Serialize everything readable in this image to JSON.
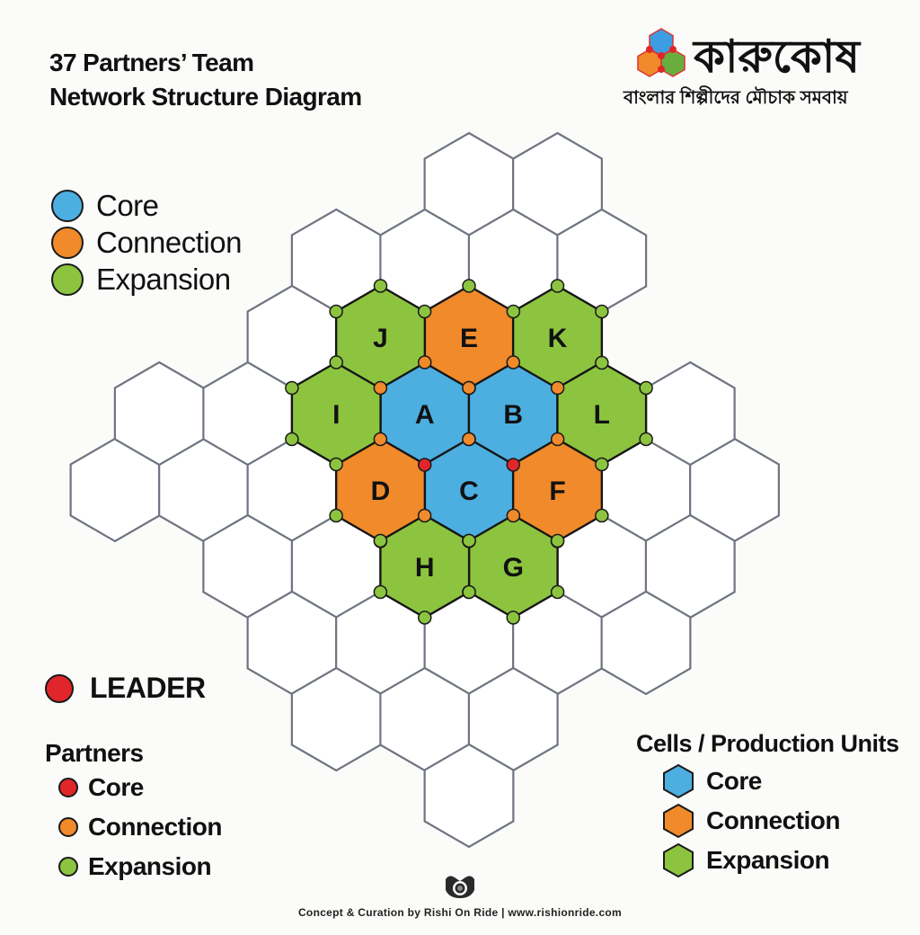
{
  "title": {
    "line1": "37 Partners’ Team",
    "line2": "Network Structure Diagram"
  },
  "logo": {
    "name": "কারুকোষ",
    "tagline": "বাংলার শিল্পীদের মৌচাক সমবায়"
  },
  "colors": {
    "core": "#4daee0",
    "connection": "#f08a2b",
    "expansion": "#8cc43f",
    "leader": "#e0262a",
    "empty_stroke": "#6e7480"
  },
  "legend_top": [
    {
      "label": "Core",
      "type": "core"
    },
    {
      "label": "Connection",
      "type": "connection"
    },
    {
      "label": "Expansion",
      "type": "expansion"
    }
  ],
  "leader_label": "LEADER",
  "partners_legend": {
    "title": "Partners",
    "items": [
      {
        "label": "Core",
        "type": "leader"
      },
      {
        "label": "Connection",
        "type": "connection"
      },
      {
        "label": "Expansion",
        "type": "expansion"
      }
    ]
  },
  "cells_legend": {
    "title": "Cells / Production Units",
    "items": [
      {
        "label": "Core",
        "type": "core"
      },
      {
        "label": "Connection",
        "type": "connection"
      },
      {
        "label": "Expansion",
        "type": "expansion"
      }
    ]
  },
  "cells": [
    {
      "label": "A",
      "type": "core"
    },
    {
      "label": "B",
      "type": "core"
    },
    {
      "label": "C",
      "type": "core"
    },
    {
      "label": "D",
      "type": "connection"
    },
    {
      "label": "E",
      "type": "connection"
    },
    {
      "label": "F",
      "type": "connection"
    },
    {
      "label": "G",
      "type": "expansion"
    },
    {
      "label": "H",
      "type": "expansion"
    },
    {
      "label": "I",
      "type": "expansion"
    },
    {
      "label": "J",
      "type": "expansion"
    },
    {
      "label": "K",
      "type": "expansion"
    },
    {
      "label": "L",
      "type": "expansion"
    }
  ],
  "footer": {
    "credit": "Concept & Curation by Rishi On Ride | www.rishionride.com",
    "icon": "camera-lens-icon"
  }
}
